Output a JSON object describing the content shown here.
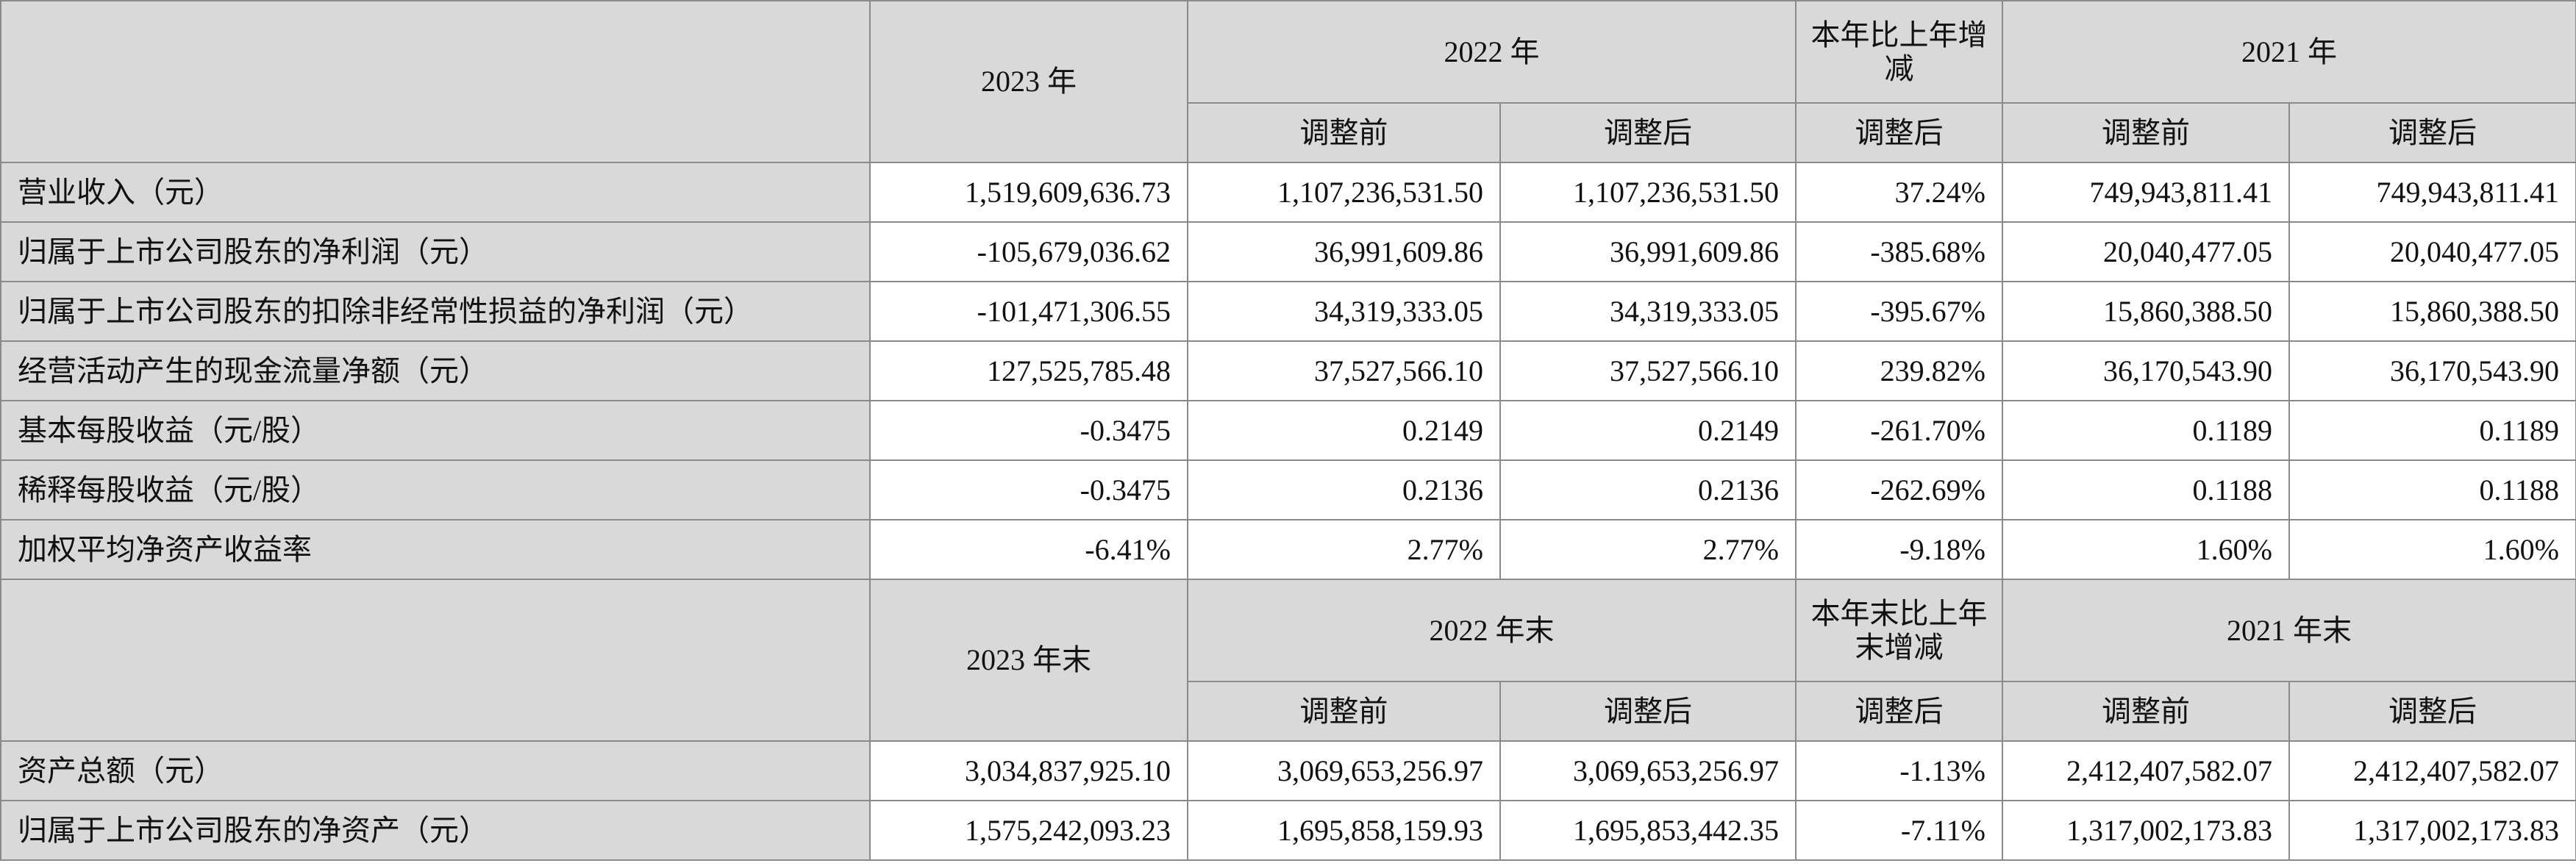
{
  "table": {
    "income_header": {
      "col_2023": "2023 年",
      "col_2022": "2022 年",
      "col_change": "本年比上年增减",
      "col_2021": "2021 年",
      "sub_before": "调整前",
      "sub_after": "调整后"
    },
    "income_rows": [
      {
        "label": "营业收入（元）",
        "v2023": "1,519,609,636.73",
        "v2022_before": "1,107,236,531.50",
        "v2022_after": "1,107,236,531.50",
        "change": "37.24%",
        "v2021_before": "749,943,811.41",
        "v2021_after": "749,943,811.41"
      },
      {
        "label": "归属于上市公司股东的净利润（元）",
        "v2023": "-105,679,036.62",
        "v2022_before": "36,991,609.86",
        "v2022_after": "36,991,609.86",
        "change": "-385.68%",
        "v2021_before": "20,040,477.05",
        "v2021_after": "20,040,477.05"
      },
      {
        "label": "归属于上市公司股东的扣除非经常性损益的净利润（元）",
        "v2023": "-101,471,306.55",
        "v2022_before": "34,319,333.05",
        "v2022_after": "34,319,333.05",
        "change": "-395.67%",
        "v2021_before": "15,860,388.50",
        "v2021_after": "15,860,388.50"
      },
      {
        "label": "经营活动产生的现金流量净额（元）",
        "v2023": "127,525,785.48",
        "v2022_before": "37,527,566.10",
        "v2022_after": "37,527,566.10",
        "change": "239.82%",
        "v2021_before": "36,170,543.90",
        "v2021_after": "36,170,543.90"
      },
      {
        "label": "基本每股收益（元/股）",
        "v2023": "-0.3475",
        "v2022_before": "0.2149",
        "v2022_after": "0.2149",
        "change": "-261.70%",
        "v2021_before": "0.1189",
        "v2021_after": "0.1189"
      },
      {
        "label": "稀释每股收益（元/股）",
        "v2023": "-0.3475",
        "v2022_before": "0.2136",
        "v2022_after": "0.2136",
        "change": "-262.69%",
        "v2021_before": "0.1188",
        "v2021_after": "0.1188"
      },
      {
        "label": "加权平均净资产收益率",
        "v2023": "-6.41%",
        "v2022_before": "2.77%",
        "v2022_after": "2.77%",
        "change": "-9.18%",
        "v2021_before": "1.60%",
        "v2021_after": "1.60%"
      }
    ],
    "balance_header": {
      "col_2023": "2023 年末",
      "col_2022": "2022 年末",
      "col_change": "本年末比上年末增减",
      "col_2021": "2021 年末",
      "sub_before": "调整前",
      "sub_after": "调整后"
    },
    "balance_rows": [
      {
        "label": "资产总额（元）",
        "v2023": "3,034,837,925.10",
        "v2022_before": "3,069,653,256.97",
        "v2022_after": "3,069,653,256.97",
        "change": "-1.13%",
        "v2021_before": "2,412,407,582.07",
        "v2021_after": "2,412,407,582.07"
      },
      {
        "label": "归属于上市公司股东的净资产（元）",
        "v2023": "1,575,242,093.23",
        "v2022_before": "1,695,858,159.93",
        "v2022_after": "1,695,853,442.35",
        "change": "-7.11%",
        "v2021_before": "1,317,002,173.83",
        "v2021_after": "1,317,002,173.83"
      }
    ]
  }
}
